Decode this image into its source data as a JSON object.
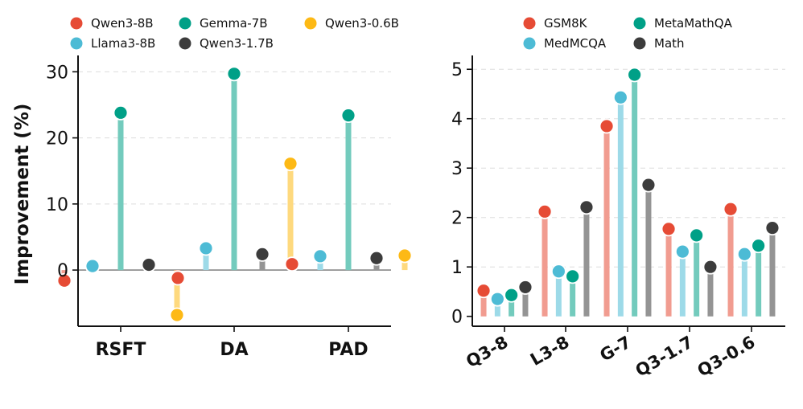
{
  "chart_data": [
    {
      "type": "lollipop",
      "title": "",
      "xlabel": "",
      "ylabel": "Improvement (%)",
      "ylim": [
        -8.5,
        31.5
      ],
      "yticks": [
        0,
        10,
        20,
        30
      ],
      "grid": true,
      "categories": [
        "RSFT",
        "DA",
        "PAD"
      ],
      "series": [
        {
          "name": "Qwen3-8B",
          "color": "#E64B35",
          "values": [
            -1.6,
            -1.2,
            0.9
          ]
        },
        {
          "name": "Llama3-8B",
          "color": "#4DBBD5",
          "values": [
            0.6,
            3.3,
            2.1
          ]
        },
        {
          "name": "Gemma-7B",
          "color": "#00A087",
          "values": [
            23.8,
            29.7,
            23.4
          ]
        },
        {
          "name": "Qwen3-1.7B",
          "color": "#3C3C3C",
          "values": [
            0.8,
            2.4,
            1.8
          ]
        },
        {
          "name": "Qwen3-0.6B",
          "color": "#FDB915",
          "values": [
            -6.8,
            16.1,
            2.2
          ]
        }
      ],
      "legend_position": "top"
    },
    {
      "type": "lollipop",
      "title": "",
      "xlabel": "",
      "ylabel": "",
      "ylim": [
        -0.2,
        5.15
      ],
      "yticks": [
        0,
        1,
        2,
        3,
        4,
        5
      ],
      "grid": true,
      "categories": [
        "Q3-8",
        "L3-8",
        "G-7",
        "Q3-1.7",
        "Q3-0.6"
      ],
      "series": [
        {
          "name": "GSM8K",
          "color": "#E64B35",
          "values": [
            0.52,
            2.12,
            3.85,
            1.77,
            2.17
          ]
        },
        {
          "name": "MedMCQA",
          "color": "#4DBBD5",
          "values": [
            0.35,
            0.91,
            4.43,
            1.31,
            1.26
          ]
        },
        {
          "name": "MetaMathQA",
          "color": "#00A087",
          "values": [
            0.43,
            0.81,
            4.89,
            1.64,
            1.43
          ]
        },
        {
          "name": "Math",
          "color": "#3C3C3C",
          "values": [
            0.59,
            2.21,
            2.66,
            1.0,
            1.79
          ]
        }
      ],
      "legend_position": "top"
    }
  ]
}
